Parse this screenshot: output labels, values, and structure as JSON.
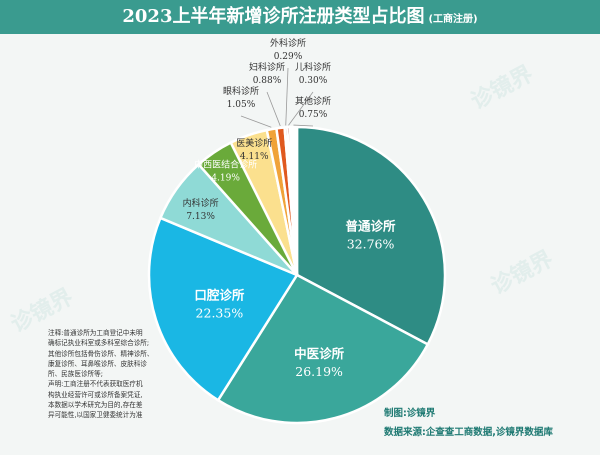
{
  "title": {
    "main": "2023上半年新增诊所注册类型占比图",
    "sub": "(工商注册)"
  },
  "chart_data": {
    "type": "pie",
    "slices": [
      {
        "name": "普通诊所",
        "value": 32.76,
        "label": "32.76%",
        "color": "#2e8c84"
      },
      {
        "name": "中医诊所",
        "value": 26.19,
        "label": "26.19%",
        "color": "#3aa79b"
      },
      {
        "name": "口腔诊所",
        "value": 22.35,
        "label": "22.35%",
        "color": "#1ab7e4"
      },
      {
        "name": "内科诊所",
        "value": 7.13,
        "label": "7.13%",
        "color": "#8fdad6"
      },
      {
        "name": "中西医结合诊所",
        "value": 4.19,
        "label": "4.19%",
        "color": "#6aaa3a"
      },
      {
        "name": "医美诊所",
        "value": 4.11,
        "label": "4.11%",
        "color": "#fbe08e"
      },
      {
        "name": "眼科诊所",
        "value": 1.05,
        "label": "1.05%",
        "color": "#f0a339"
      },
      {
        "name": "妇科诊所",
        "value": 0.88,
        "label": "0.88%",
        "color": "#e0591f"
      },
      {
        "name": "外科诊所",
        "value": 0.29,
        "label": "0.29%",
        "color": "#b91a12"
      },
      {
        "name": "儿科诊所",
        "value": 0.3,
        "label": "0.30%",
        "color": "#7f1d15"
      },
      {
        "name": "其他诊所",
        "value": 0.75,
        "label": "0.75%",
        "color": "#ffffff"
      }
    ]
  },
  "note": {
    "lines": [
      "注释:普通诊所为工商登记中未明",
      "确标记执业科室或多科室综合诊所;",
      "其他诊所包括骨伤诊所、精神诊所、",
      "康复诊所、耳鼻喉诊所、皮肤科诊",
      "所、民族医诊所等;",
      "声明:工商注册不代表获取医疗机",
      "构执业经营许可或诊所备案凭证,",
      "本数据以学术研究为目的,存在差",
      "异可能性,以国家卫健委统计为准"
    ]
  },
  "credits": {
    "maker": "制图:诊镜界",
    "source": "数据来源:企查查工商数据,诊镜界数据库"
  },
  "watermark": "诊镜界",
  "colors": {
    "title_bar": "#3a9b8f",
    "background": "#f3f6f5"
  }
}
